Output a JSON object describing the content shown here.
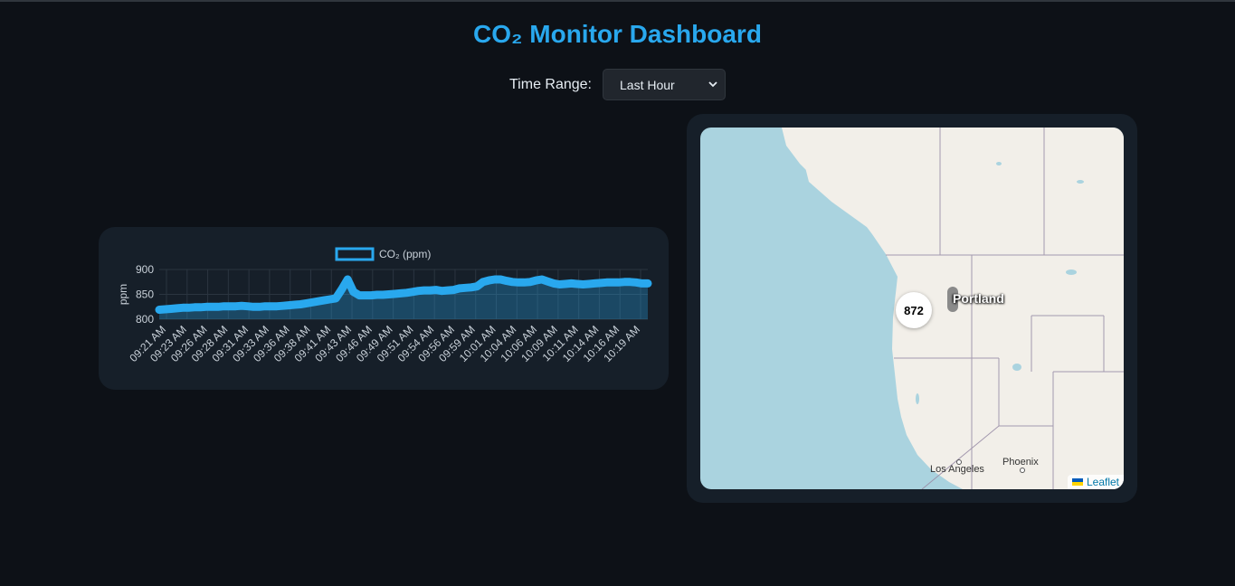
{
  "header": {
    "title": "CO₂ Monitor Dashboard"
  },
  "controls": {
    "time_range_label": "Time Range:",
    "time_range_value": "Last Hour"
  },
  "chart_data": {
    "type": "area",
    "title": "",
    "legend": "CO₂ (ppm)",
    "ylabel": "ppm",
    "xlabel": "",
    "ylim": [
      800,
      900
    ],
    "yticks": [
      800,
      850,
      900
    ],
    "x_tick_labels": [
      "09:21 AM",
      "09:23 AM",
      "09:26 AM",
      "09:28 AM",
      "09:31 AM",
      "09:33 AM",
      "09:36 AM",
      "09:38 AM",
      "09:41 AM",
      "09:43 AM",
      "09:46 AM",
      "09:49 AM",
      "09:51 AM",
      "09:54 AM",
      "09:56 AM",
      "09:59 AM",
      "10:01 AM",
      "10:04 AM",
      "10:06 AM",
      "10:09 AM",
      "10:11 AM",
      "10:14 AM",
      "10:16 AM",
      "10:19 AM"
    ],
    "values": [
      819,
      820,
      821,
      822,
      823,
      823,
      824,
      824,
      825,
      825,
      825,
      826,
      826,
      826,
      827,
      826,
      825,
      825,
      826,
      826,
      826,
      827,
      828,
      829,
      830,
      832,
      834,
      836,
      838,
      840,
      842,
      860,
      880,
      855,
      848,
      848,
      848,
      849,
      849,
      850,
      851,
      852,
      853,
      855,
      857,
      858,
      858,
      859,
      857,
      858,
      859,
      862,
      863,
      864,
      866,
      875,
      878,
      880,
      880,
      877,
      875,
      874,
      874,
      875,
      878,
      880,
      876,
      872,
      870,
      871,
      872,
      871,
      870,
      871,
      872,
      873,
      874,
      874,
      874,
      875,
      875,
      874,
      872,
      872
    ],
    "color": "#29a8ee"
  },
  "map": {
    "marker_value": "872",
    "marker_city": "Portland",
    "attribution": "Leaflet",
    "cities": [
      "Los Angeles",
      "Phoenix"
    ]
  }
}
